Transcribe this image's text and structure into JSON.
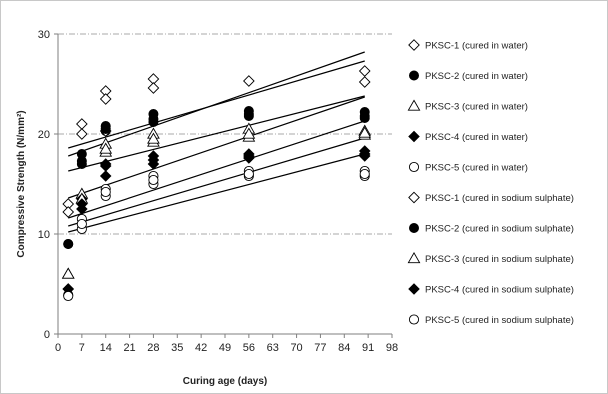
{
  "chart_data": {
    "type": "scatter",
    "xlabel": "Curing age (days)",
    "ylabel": "Compressive Strength (N/mm²)",
    "xlim": [
      0,
      98
    ],
    "ylim": [
      0,
      30
    ],
    "xticks": [
      0,
      7,
      14,
      21,
      28,
      35,
      42,
      49,
      56,
      63,
      70,
      77,
      84,
      91,
      98
    ],
    "yticks": [
      0,
      10,
      20,
      30
    ],
    "grid": "dash-dot horizontal lines at 10, 20, 30",
    "legend_position": "right",
    "series": [
      {
        "name": "PKSC-1 (cured in water)",
        "marker": "diamond-open",
        "x": [
          3,
          7,
          14,
          14,
          28,
          56,
          90
        ],
        "y": [
          13.0,
          21.0,
          24.3,
          23.5,
          25.5,
          25.3,
          26.3
        ]
      },
      {
        "name": "PKSC-2 (cured in water)",
        "marker": "circle-filled",
        "x": [
          3,
          7,
          7,
          14,
          14,
          28,
          28,
          56,
          56,
          90,
          90
        ],
        "y": [
          9.0,
          18.0,
          17.3,
          20.8,
          20.3,
          22.0,
          21.5,
          22.3,
          21.8,
          22.2,
          21.8
        ]
      },
      {
        "name": "PKSC-3 (cured in water)",
        "marker": "triangle-open",
        "x": [
          3,
          7,
          14,
          14,
          28,
          28,
          56,
          56,
          90,
          90
        ],
        "y": [
          6.0,
          14.0,
          19.0,
          18.2,
          20.0,
          19.2,
          20.5,
          19.7,
          20.3,
          19.9
        ]
      },
      {
        "name": "PKSC-4 (cured in water)",
        "marker": "diamond-filled",
        "x": [
          3,
          7,
          7,
          14,
          14,
          28,
          28,
          56,
          56,
          90,
          90
        ],
        "y": [
          4.5,
          13.5,
          12.5,
          17.0,
          15.8,
          17.8,
          17.0,
          18.0,
          17.6,
          18.3,
          17.8
        ]
      },
      {
        "name": "PKSC-5 (cured in water)",
        "marker": "circle-open",
        "x": [
          3,
          7,
          7,
          14,
          14,
          28,
          28,
          56,
          56,
          90,
          90
        ],
        "y": [
          3.9,
          11.5,
          10.5,
          14.5,
          13.8,
          15.8,
          15.0,
          16.3,
          15.8,
          16.3,
          15.8
        ]
      },
      {
        "name": "PKSC-1 (cured in sodium sulphate)",
        "marker": "diamond-open",
        "x": [
          3,
          7,
          14,
          28,
          90
        ],
        "y": [
          12.2,
          20.0,
          20.3,
          24.6,
          25.2
        ]
      },
      {
        "name": "PKSC-2 (cured in sodium sulphate)",
        "marker": "circle-filled",
        "x": [
          3,
          7,
          14,
          28,
          56,
          90
        ],
        "y": [
          9.0,
          17.0,
          20.5,
          21.2,
          22.0,
          21.6
        ]
      },
      {
        "name": "PKSC-3 (cured in sodium sulphate)",
        "marker": "triangle-open",
        "x": [
          3,
          7,
          14,
          28,
          56,
          90
        ],
        "y": [
          6.0,
          13.5,
          18.5,
          19.5,
          20.0,
          20.1
        ]
      },
      {
        "name": "PKSC-4 (cured in sodium sulphate)",
        "marker": "diamond-filled",
        "x": [
          3,
          7,
          14,
          28,
          56,
          90
        ],
        "y": [
          4.5,
          13.0,
          16.8,
          17.4,
          17.8,
          18.0
        ]
      },
      {
        "name": "PKSC-5 (cured in sodium sulphate)",
        "marker": "circle-open",
        "x": [
          3,
          7,
          14,
          28,
          56,
          90
        ],
        "y": [
          3.8,
          11.0,
          14.2,
          15.4,
          16.0,
          16.0
        ]
      }
    ],
    "trendlines": [
      {
        "from": [
          3,
          18.6
        ],
        "to": [
          90,
          27.3
        ]
      },
      {
        "from": [
          3,
          17.8
        ],
        "to": [
          90,
          28.2
        ]
      },
      {
        "from": [
          3,
          16.3
        ],
        "to": [
          90,
          23.8
        ]
      },
      {
        "from": [
          3,
          13.6
        ],
        "to": [
          90,
          23.7
        ]
      },
      {
        "from": [
          3,
          11.6
        ],
        "to": [
          90,
          21.3
        ]
      },
      {
        "from": [
          3,
          10.8
        ],
        "to": [
          90,
          19.6
        ]
      },
      {
        "from": [
          3,
          10.2
        ],
        "to": [
          90,
          18.0
        ]
      }
    ]
  }
}
